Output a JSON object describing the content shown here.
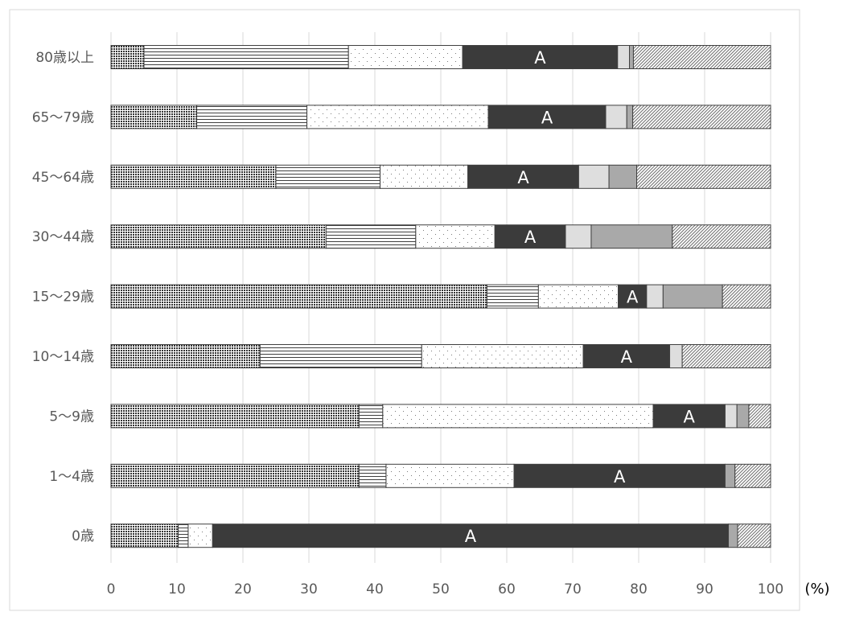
{
  "chart_data": {
    "type": "bar",
    "orientation": "horizontal",
    "stacked": true,
    "percent_stacked": true,
    "categories": [
      "80歳以上",
      "65〜79歳",
      "45〜64歳",
      "30〜44歳",
      "15〜29歳",
      "10〜14歳",
      "5〜9歳",
      "1〜4歳",
      "0歳"
    ],
    "series": [
      {
        "pattern": "dense-dots",
        "values": [
          5,
          13,
          25,
          32.6,
          57,
          22.6,
          37.6,
          37.6,
          10.2
        ]
      },
      {
        "pattern": "horizontal-lines",
        "values": [
          31,
          16.7,
          15.8,
          13.6,
          7.8,
          24.5,
          3.6,
          4.1,
          1.5
        ]
      },
      {
        "pattern": "sparse-dots",
        "values": [
          17.3,
          27.5,
          13.3,
          12,
          12.1,
          24.5,
          41,
          19.4,
          3.7
        ]
      },
      {
        "pattern": "solid-black",
        "label": "A",
        "values": [
          23.5,
          17.8,
          16.8,
          10.7,
          4.3,
          13.1,
          10.9,
          32,
          78.2
        ]
      },
      {
        "pattern": "light-gray",
        "values": [
          1.8,
          3.2,
          4.6,
          3.9,
          2.5,
          1.9,
          1.8,
          0,
          0
        ]
      },
      {
        "pattern": "mid-gray",
        "values": [
          0.6,
          0.9,
          4.2,
          12.3,
          9,
          0,
          1.8,
          1.5,
          1.4
        ]
      },
      {
        "pattern": "diagonal-hatch",
        "values": [
          20.8,
          20.9,
          20.3,
          14.9,
          7.3,
          13.4,
          3.3,
          5.4,
          5
        ]
      }
    ],
    "segment_label_text": "A",
    "x_ticks": [
      0,
      10,
      20,
      30,
      40,
      50,
      60,
      70,
      80,
      90,
      100
    ],
    "xlim": [
      0,
      100
    ],
    "xlabel": "(%)",
    "grid": "vertical",
    "legend": "none",
    "colors": {
      "axis_text": "#595959",
      "gridline": "#d9d9d9",
      "frame": "#d9d9d9",
      "outline": "#404040",
      "solid_black": "#3b3b3b",
      "light_gray": "#dedede",
      "mid_gray": "#a9a9a9",
      "label_on_dark": "#ffffff"
    }
  }
}
